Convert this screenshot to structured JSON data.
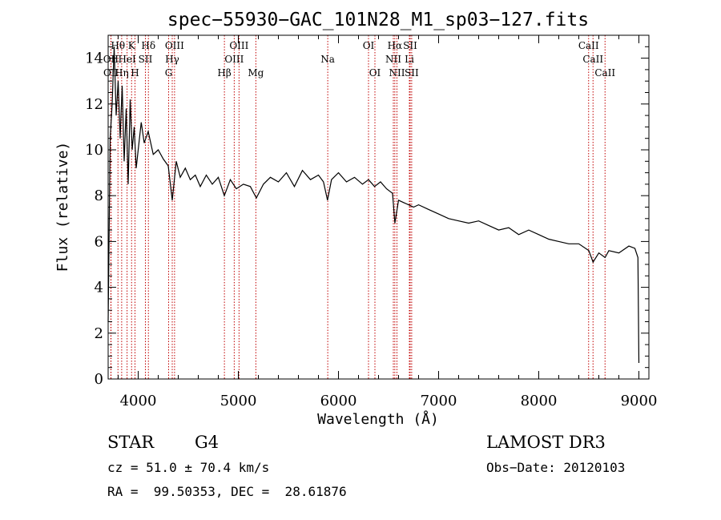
{
  "chart_data": {
    "type": "line",
    "title": "spec−55930−GAC_101N28_M1_sp03−127.fits",
    "xlabel": "Wavelength (Å)",
    "ylabel": "Flux (relative)",
    "xlim": [
      3700,
      9100
    ],
    "ylim": [
      0,
      15
    ],
    "xticks": [
      4000,
      5000,
      6000,
      7000,
      8000,
      9000
    ],
    "yticks": [
      0,
      2,
      4,
      6,
      8,
      10,
      12,
      14
    ],
    "grid": false,
    "series": [
      {
        "x": [
          3700,
          3720,
          3740,
          3760,
          3780,
          3800,
          3820,
          3840,
          3860,
          3880,
          3900,
          3920,
          3940,
          3960,
          3980,
          4000,
          4030,
          4060,
          4100,
          4150,
          4200,
          4250,
          4300,
          4340,
          4380,
          4420,
          4470,
          4520,
          4570,
          4620,
          4680,
          4740,
          4800,
          4860,
          4920,
          4980,
          5050,
          5120,
          5180,
          5250,
          5320,
          5400,
          5480,
          5560,
          5640,
          5720,
          5800,
          5850,
          5890,
          5930,
          6000,
          6080,
          6160,
          6240,
          6300,
          6360,
          6420,
          6480,
          6540,
          6563,
          6600,
          6650,
          6700,
          6750,
          6800,
          6900,
          7000,
          7100,
          7200,
          7300,
          7400,
          7500,
          7600,
          7700,
          7800,
          7900,
          8000,
          8100,
          8200,
          8300,
          8400,
          8500,
          8542,
          8600,
          8662,
          8700,
          8800,
          8900,
          8960,
          8990,
          9000
        ],
        "y": [
          2.5,
          10.5,
          12.0,
          14.5,
          11.5,
          13.0,
          10.5,
          12.8,
          9.5,
          11.8,
          8.5,
          12.2,
          10.0,
          11.0,
          9.2,
          10.0,
          11.2,
          10.3,
          10.8,
          9.8,
          10.0,
          9.6,
          9.3,
          7.8,
          9.5,
          8.8,
          9.2,
          8.7,
          8.9,
          8.4,
          8.9,
          8.5,
          8.8,
          8.0,
          8.7,
          8.3,
          8.5,
          8.4,
          7.9,
          8.5,
          8.8,
          8.6,
          9.0,
          8.4,
          9.1,
          8.7,
          8.9,
          8.6,
          7.8,
          8.7,
          9.0,
          8.6,
          8.8,
          8.5,
          8.7,
          8.4,
          8.6,
          8.3,
          8.1,
          6.8,
          7.8,
          7.7,
          7.6,
          7.5,
          7.6,
          7.4,
          7.2,
          7.0,
          6.9,
          6.8,
          6.9,
          6.7,
          6.5,
          6.6,
          6.3,
          6.5,
          6.3,
          6.1,
          6.0,
          5.9,
          5.9,
          5.6,
          5.1,
          5.5,
          5.3,
          5.6,
          5.5,
          5.8,
          5.7,
          5.3,
          0.7
        ]
      }
    ],
    "lines": [
      {
        "name": "Hθ",
        "wl": 3798,
        "row": 0,
        "dx": 0
      },
      {
        "name": "K",
        "wl": 3934,
        "row": 0,
        "dx": 0
      },
      {
        "name": "Hδ",
        "wl": 4102,
        "row": 0,
        "dx": 0
      },
      {
        "name": "OIII",
        "wl": 4363,
        "row": 0,
        "dx": 0
      },
      {
        "name": "OIII",
        "wl": 5007,
        "row": 0,
        "dx": 0
      },
      {
        "name": "OI",
        "wl": 6300,
        "row": 0,
        "dx": 0
      },
      {
        "name": "Hα",
        "wl": 6563,
        "row": 0,
        "dx": 0
      },
      {
        "name": "SII",
        "wl": 6716,
        "row": 0,
        "dx": 0
      },
      {
        "name": "CaII",
        "wl": 8498,
        "row": 0,
        "dx": 0
      },
      {
        "name": "OII",
        "wl": 3727,
        "row": 1,
        "dx": 0
      },
      {
        "name": "HeI",
        "wl": 3889,
        "row": 1,
        "dx": 0
      },
      {
        "name": "SII",
        "wl": 4072,
        "row": 1,
        "dx": 0
      },
      {
        "name": "Hγ",
        "wl": 4340,
        "row": 1,
        "dx": 0
      },
      {
        "name": "OIII",
        "wl": 4959,
        "row": 1,
        "dx": 0
      },
      {
        "name": "Na",
        "wl": 5893,
        "row": 1,
        "dx": 0
      },
      {
        "name": "NII",
        "wl": 6548,
        "row": 1,
        "dx": 0
      },
      {
        "name": "Li",
        "wl": 6708,
        "row": 1,
        "dx": 0
      },
      {
        "name": "CaII",
        "wl": 8542,
        "row": 1,
        "dx": 0
      },
      {
        "name": "OII",
        "wl": 3729,
        "row": 2,
        "dx": 0
      },
      {
        "name": "Hη",
        "wl": 3835,
        "row": 2,
        "dx": 0
      },
      {
        "name": "H",
        "wl": 3968,
        "row": 2,
        "dx": 0
      },
      {
        "name": "G",
        "wl": 4304,
        "row": 2,
        "dx": 0
      },
      {
        "name": "Hβ",
        "wl": 4861,
        "row": 2,
        "dx": 0
      },
      {
        "name": "Mg",
        "wl": 5175,
        "row": 2,
        "dx": 0
      },
      {
        "name": "OI",
        "wl": 6364,
        "row": 2,
        "dx": 0
      },
      {
        "name": "NII",
        "wl": 6584,
        "row": 2,
        "dx": 0
      },
      {
        "name": "SII",
        "wl": 6731,
        "row": 2,
        "dx": 0
      },
      {
        "name": "CaII",
        "wl": 8662,
        "row": 2,
        "dx": 0
      }
    ]
  },
  "info": {
    "class": "STAR",
    "subclass": "G4",
    "survey": "LAMOST DR3",
    "cz": "cz = 51.0 ± 70.4 km/s",
    "obs_date": "Obs−Date: 20120103",
    "coords": "RA =  99.50353, DEC =  28.61876"
  }
}
